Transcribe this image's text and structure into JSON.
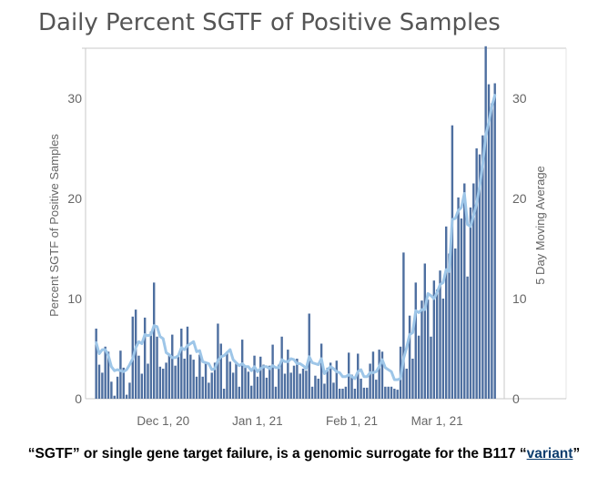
{
  "title": "Daily Percent SGTF of Positive Samples",
  "caption": {
    "before": "“SGTF” or single gene target failure, is a genomic surrogate for the B117 “",
    "underlined": "variant",
    "after": "”"
  },
  "colors": {
    "bar": "#4e6fa0",
    "line": "#9ec6e8",
    "axis": "#c8c8c8",
    "text": "#666666"
  },
  "chart_data": {
    "type": "bar",
    "title": "Daily Percent SGTF of Positive Samples",
    "ylabel": "Percent SGTF of Positive Samples",
    "ylabel_right": "5 Day Moving Average",
    "ylim": [
      0,
      35
    ],
    "x_start": "2020-11-09",
    "x_end": "2021-03-17",
    "x_ticks": [
      {
        "date": "2020-12-01",
        "label": "Dec 1, 20"
      },
      {
        "date": "2021-01-01",
        "label": "Jan 1, 21"
      },
      {
        "date": "2021-02-01",
        "label": "Feb 1, 21"
      },
      {
        "date": "2021-03-01",
        "label": "Mar 1, 21"
      }
    ],
    "y_ticks": [
      0,
      10,
      20,
      30
    ],
    "series": [
      {
        "type": "bar",
        "values": [
          7,
          3.4,
          2.6,
          5.2,
          4.7,
          1.7,
          0.3,
          2.2,
          4.8,
          3.1,
          0.4,
          1.6,
          8.2,
          8.9,
          4.3,
          2.5,
          8.1,
          3.5,
          6.7,
          11.6,
          6.2,
          3.2,
          3.0,
          3.6,
          4.5,
          6.4,
          3.3,
          4.2,
          7.0,
          4.0,
          7.2,
          4.4,
          3.9,
          2.2,
          4.4,
          2.2,
          3.5,
          1.6,
          2.6,
          3.6,
          7.5,
          5.5,
          1.0,
          4.7,
          3.7,
          2.6,
          3.5,
          1.2,
          5.9,
          3.1,
          2.7,
          1.3,
          4.3,
          2.2,
          4.2,
          3.4,
          2.1,
          3.3,
          5.4,
          1.2,
          3.4,
          6.2,
          2.5,
          4.9,
          2.6,
          3.3,
          4.0,
          2.5,
          3.0,
          2.8,
          8.5,
          1.2,
          2.3,
          2.0,
          5.5,
          1.5,
          3.1,
          3.6,
          1.6,
          3.8,
          1.0,
          1.0,
          1.2,
          4.6,
          2.4,
          1.0,
          4.5,
          2.0,
          1.1,
          1.1,
          3.5,
          4.7,
          1.9,
          4.9,
          4.7,
          1.2,
          1.2,
          1.2,
          1.0,
          0.9,
          5.2,
          14.6,
          3.0,
          8.3,
          4.0,
          11.6,
          6.3,
          9.8,
          13.5,
          9.9,
          6.2,
          11.8,
          10.9,
          12.8,
          10.0,
          17.2,
          14.5,
          27.3,
          15.0,
          20.1,
          18.0,
          21.5,
          12.2,
          19.1,
          21.5,
          25.0,
          24.4,
          26.3,
          35.2,
          31.4,
          29.5,
          31.5
        ]
      },
      {
        "type": "line",
        "name": "5 Day Moving Average",
        "values": [
          5.6,
          4.5,
          4.9,
          4.9,
          4.3,
          3.2,
          2.8,
          2.9,
          2.8,
          2.7,
          2.9,
          3.4,
          4.0,
          5.1,
          5.7,
          5.5,
          6.4,
          6.3,
          6.4,
          7.3,
          7.2,
          6.2,
          6.0,
          4.6,
          4.4,
          4.1,
          4.1,
          4.3,
          5.1,
          4.9,
          5.3,
          5.5,
          5.7,
          4.7,
          4.8,
          3.7,
          3.6,
          3.5,
          2.9,
          3.0,
          3.8,
          4.2,
          4.3,
          4.6,
          4.9,
          3.9,
          3.6,
          3.3,
          3.5,
          3.2,
          3.2,
          2.8,
          3.2,
          2.7,
          3.0,
          3.2,
          3.2,
          3.0,
          3.3,
          3.1,
          3.1,
          3.9,
          3.7,
          3.7,
          4.0,
          3.9,
          3.5,
          3.5,
          3.3,
          3.0,
          4.2,
          3.6,
          3.5,
          3.4,
          4.0,
          2.5,
          2.9,
          3.2,
          3.0,
          2.7,
          2.6,
          2.2,
          2.2,
          2.4,
          2.2,
          2.0,
          2.7,
          2.9,
          2.2,
          2.2,
          2.6,
          2.6,
          2.7,
          3.2,
          3.9,
          3.1,
          2.9,
          2.7,
          1.9,
          1.9,
          2.0,
          4.0,
          5.1,
          6.4,
          6.6,
          8.8,
          8.6,
          8.9,
          8.9,
          10.5,
          10.3,
          10.0,
          10.6,
          11.4,
          11.6,
          12.9,
          12.7,
          17.9,
          18.0,
          18.8,
          19.1,
          20.5,
          17.4,
          17.2,
          18.3,
          19.5,
          21.2,
          23.4,
          26.3,
          27.6,
          29.2,
          30.3
        ]
      }
    ]
  }
}
